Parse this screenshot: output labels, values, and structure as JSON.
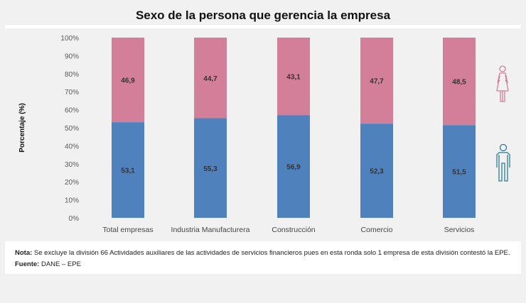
{
  "chart_data": {
    "type": "bar",
    "stacked": true,
    "title": "Sexo de la persona que gerencia la empresa",
    "ylabel": "Porcentaje (%)",
    "xlabel": "",
    "ylim": [
      0,
      100
    ],
    "yticks": [
      "0%",
      "10%",
      "20%",
      "30%",
      "40%",
      "50%",
      "60%",
      "70%",
      "80%",
      "90%",
      "100%"
    ],
    "categories": [
      "Total empresas",
      "Industria Manufacturera",
      "Construcción",
      "Comercio",
      "Servicios"
    ],
    "series": [
      {
        "icon": "male-icon",
        "color": "#4f81bd",
        "values": [
          53.1,
          55.3,
          56.9,
          52.3,
          51.5
        ],
        "labels": [
          "53,1",
          "55,3",
          "56,9",
          "52,3",
          "51,5"
        ]
      },
      {
        "icon": "female-icon",
        "color": "#d47f99",
        "values": [
          46.9,
          44.7,
          43.1,
          47.7,
          48.5
        ],
        "labels": [
          "46,9",
          "44,7",
          "43,1",
          "47,7",
          "48,5"
        ]
      }
    ],
    "grid": false
  },
  "note": {
    "label": "Nota:",
    "text": " Se excluye la división 66 Actividades auxiliares de las actividades de servicios financieros pues en esta ronda solo 1 empresa de esta división contestó la EPE."
  },
  "source": {
    "label": "Fuente:",
    "text": " DANE – EPE"
  },
  "icons": {
    "female_color": "#d47f99",
    "male_color": "#2e7a9a"
  }
}
